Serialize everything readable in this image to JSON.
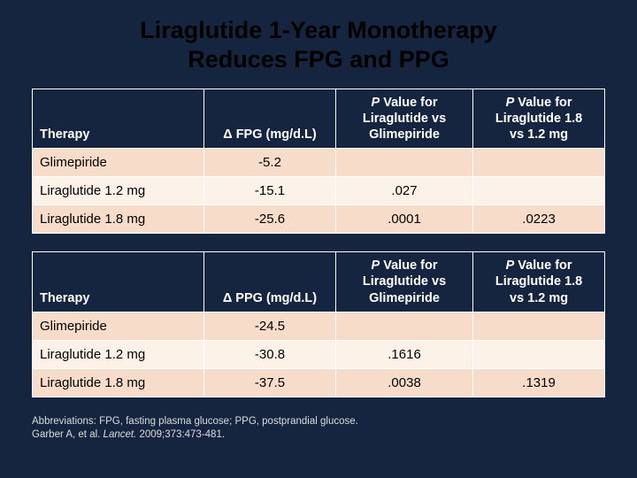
{
  "title_line1": "Liraglutide 1-Year Monotherapy",
  "title_line2": "Reduces FPG and PPG",
  "table1": {
    "headers": {
      "therapy": "Therapy",
      "delta": "Δ FPG (mg/d.L)",
      "p_vs_glim": "P Value for Liraglutide vs Glimepiride",
      "p_18_vs_12": "P Value for Liraglutide 1.8 vs 1.2 mg"
    },
    "rows": [
      {
        "therapy": "Glimepiride",
        "delta": "-5.2",
        "p1": "",
        "p2": ""
      },
      {
        "therapy": "Liraglutide 1.2 mg",
        "delta": "-15.1",
        "p1": ".027",
        "p2": ""
      },
      {
        "therapy": "Liraglutide 1.8 mg",
        "delta": "-25.6",
        "p1": ".0001",
        "p2": ".0223"
      }
    ]
  },
  "table2": {
    "headers": {
      "therapy": "Therapy",
      "delta": "Δ PPG (mg/d.L)",
      "p_vs_glim": "P Value for Liraglutide vs Glimepiride",
      "p_18_vs_12": "P Value for Liraglutide 1.8 vs 1.2 mg"
    },
    "rows": [
      {
        "therapy": "Glimepiride",
        "delta": "-24.5",
        "p1": "",
        "p2": ""
      },
      {
        "therapy": "Liraglutide 1.2 mg",
        "delta": "-30.8",
        "p1": ".1616",
        "p2": ""
      },
      {
        "therapy": "Liraglutide 1.8 mg",
        "delta": "-37.5",
        "p1": ".0038",
        "p2": ".1319"
      }
    ]
  },
  "footer": {
    "abbrev": "Abbreviations: FPG, fasting plasma glucose; PPG, postprandial glucose.",
    "cite_pre": "Garber A, et al. ",
    "cite_ital": "Lancet.",
    "cite_post": " 2009;373:473-481."
  },
  "style": {
    "bg": "#16253f",
    "header_bg": "#16253f",
    "row_odd": "#f6dcc9",
    "row_even": "#fdf2e8",
    "title_color": "#000000",
    "footer_color": "#dcdcdc"
  }
}
